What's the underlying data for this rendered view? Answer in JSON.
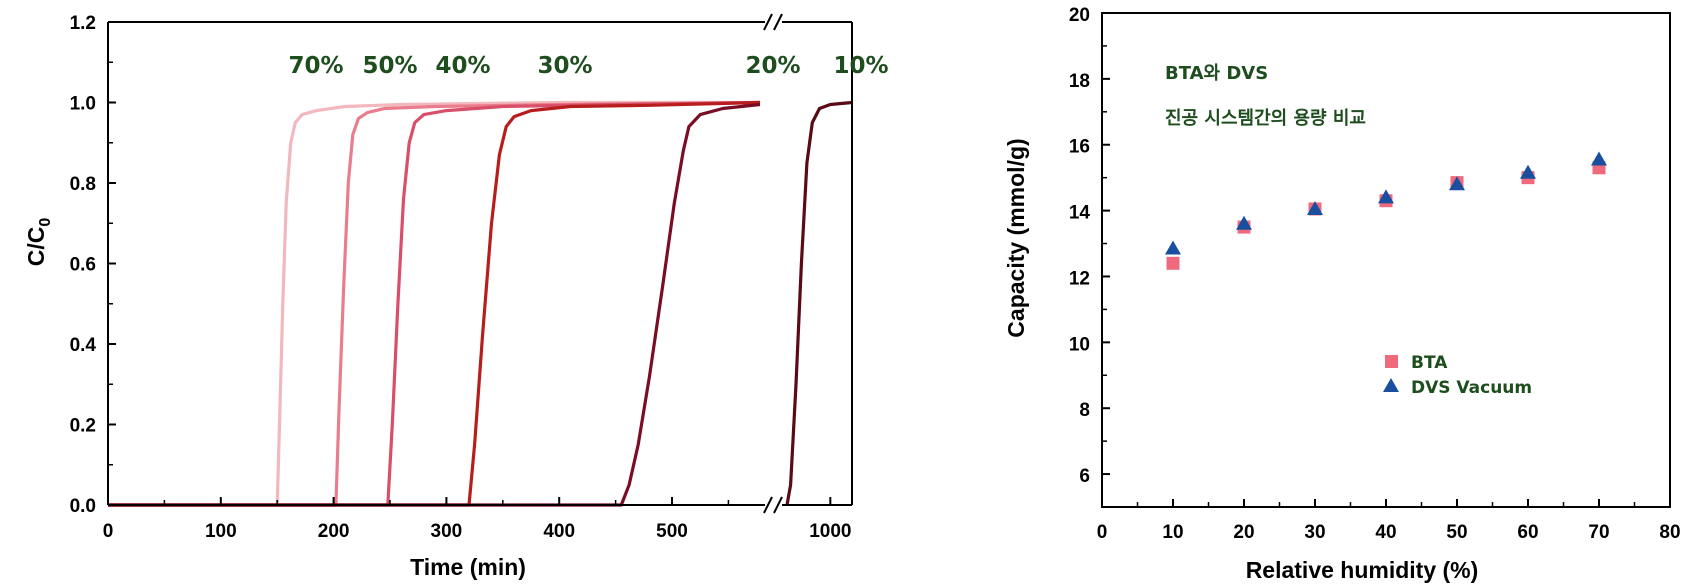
{
  "chart_data": [
    {
      "type": "line",
      "xlabel": "Time (min)",
      "ylabel_main": "C/C",
      "ylabel_sub": "0",
      "ylim": [
        0,
        1.2
      ],
      "y_ticks": [
        "0.0",
        "0.2",
        "0.4",
        "0.6",
        "0.8",
        "1.0",
        "1.2"
      ],
      "x_ticks": [
        "0",
        "100",
        "200",
        "300",
        "400",
        "500",
        "1000"
      ],
      "x_break": true,
      "series": [
        {
          "name": "70%",
          "color": "#f2b8bd",
          "x": [
            0,
            150,
            152,
            155,
            158,
            162,
            166,
            172,
            185,
            210,
            260,
            400,
            578
          ],
          "y": [
            0,
            0,
            0.2,
            0.5,
            0.75,
            0.9,
            0.95,
            0.97,
            0.98,
            0.99,
            0.995,
            1.0,
            1.0
          ]
        },
        {
          "name": "50%",
          "color": "#ea7d8d",
          "x": [
            0,
            202,
            205,
            209,
            213,
            217,
            222,
            230,
            245,
            290,
            400,
            578
          ],
          "y": [
            0,
            0,
            0.25,
            0.55,
            0.8,
            0.92,
            0.96,
            0.975,
            0.985,
            0.99,
            0.995,
            1.0
          ]
        },
        {
          "name": "40%",
          "color": "#d94f6a",
          "x": [
            0,
            248,
            252,
            257,
            262,
            267,
            272,
            280,
            300,
            350,
            450,
            578
          ],
          "y": [
            0,
            0,
            0.2,
            0.5,
            0.76,
            0.9,
            0.95,
            0.97,
            0.98,
            0.99,
            0.995,
            1.0
          ]
        },
        {
          "name": "30%",
          "color": "#b81d1d",
          "x": [
            0,
            320,
            325,
            332,
            340,
            347,
            353,
            360,
            375,
            410,
            480,
            578
          ],
          "y": [
            0,
            0,
            0.15,
            0.42,
            0.7,
            0.87,
            0.94,
            0.965,
            0.98,
            0.99,
            0.993,
            1.0
          ]
        },
        {
          "name": "20%",
          "color": "#7a0d24",
          "x": [
            0,
            455,
            462,
            470,
            480,
            492,
            502,
            510,
            515,
            525,
            545,
            578
          ],
          "y": [
            0,
            0,
            0.05,
            0.15,
            0.32,
            0.55,
            0.75,
            0.88,
            0.94,
            0.97,
            0.985,
            0.995
          ]
        },
        {
          "name": "10%",
          "color": "#5a0a14",
          "x": [
            0,
            880,
            890,
            905,
            920,
            935,
            950,
            970,
            1000,
            1060
          ],
          "y": [
            0,
            0,
            0.05,
            0.3,
            0.6,
            0.85,
            0.95,
            0.985,
            0.995,
            1.0
          ]
        }
      ]
    },
    {
      "type": "scatter",
      "xlabel": "Relative humidity (%)",
      "ylabel": "Capacity (mmol/g)",
      "xlim": [
        0,
        80
      ],
      "ylim": [
        5,
        20
      ],
      "x_ticks": [
        "0",
        "10",
        "20",
        "30",
        "40",
        "50",
        "60",
        "70",
        "80"
      ],
      "y_ticks": [
        "6",
        "8",
        "10",
        "12",
        "14",
        "16",
        "18",
        "20"
      ],
      "annotation_line1": "BTA와 DVS",
      "annotation_line2": "진공 시스템간의 용량 비교",
      "legend_position": "center-right",
      "series": [
        {
          "name": "BTA",
          "marker": "square",
          "color": "#f06a7e",
          "x": [
            10,
            20,
            30,
            40,
            50,
            60,
            70
          ],
          "y": [
            12.4,
            13.5,
            14.05,
            14.3,
            14.85,
            15.0,
            15.3
          ]
        },
        {
          "name": "DVS Vacuum",
          "marker": "triangle",
          "color": "#1a4fa0",
          "x": [
            10,
            20,
            30,
            40,
            50,
            60,
            70
          ],
          "y": [
            12.85,
            13.6,
            14.05,
            14.4,
            14.8,
            15.15,
            15.55
          ]
        }
      ]
    }
  ]
}
